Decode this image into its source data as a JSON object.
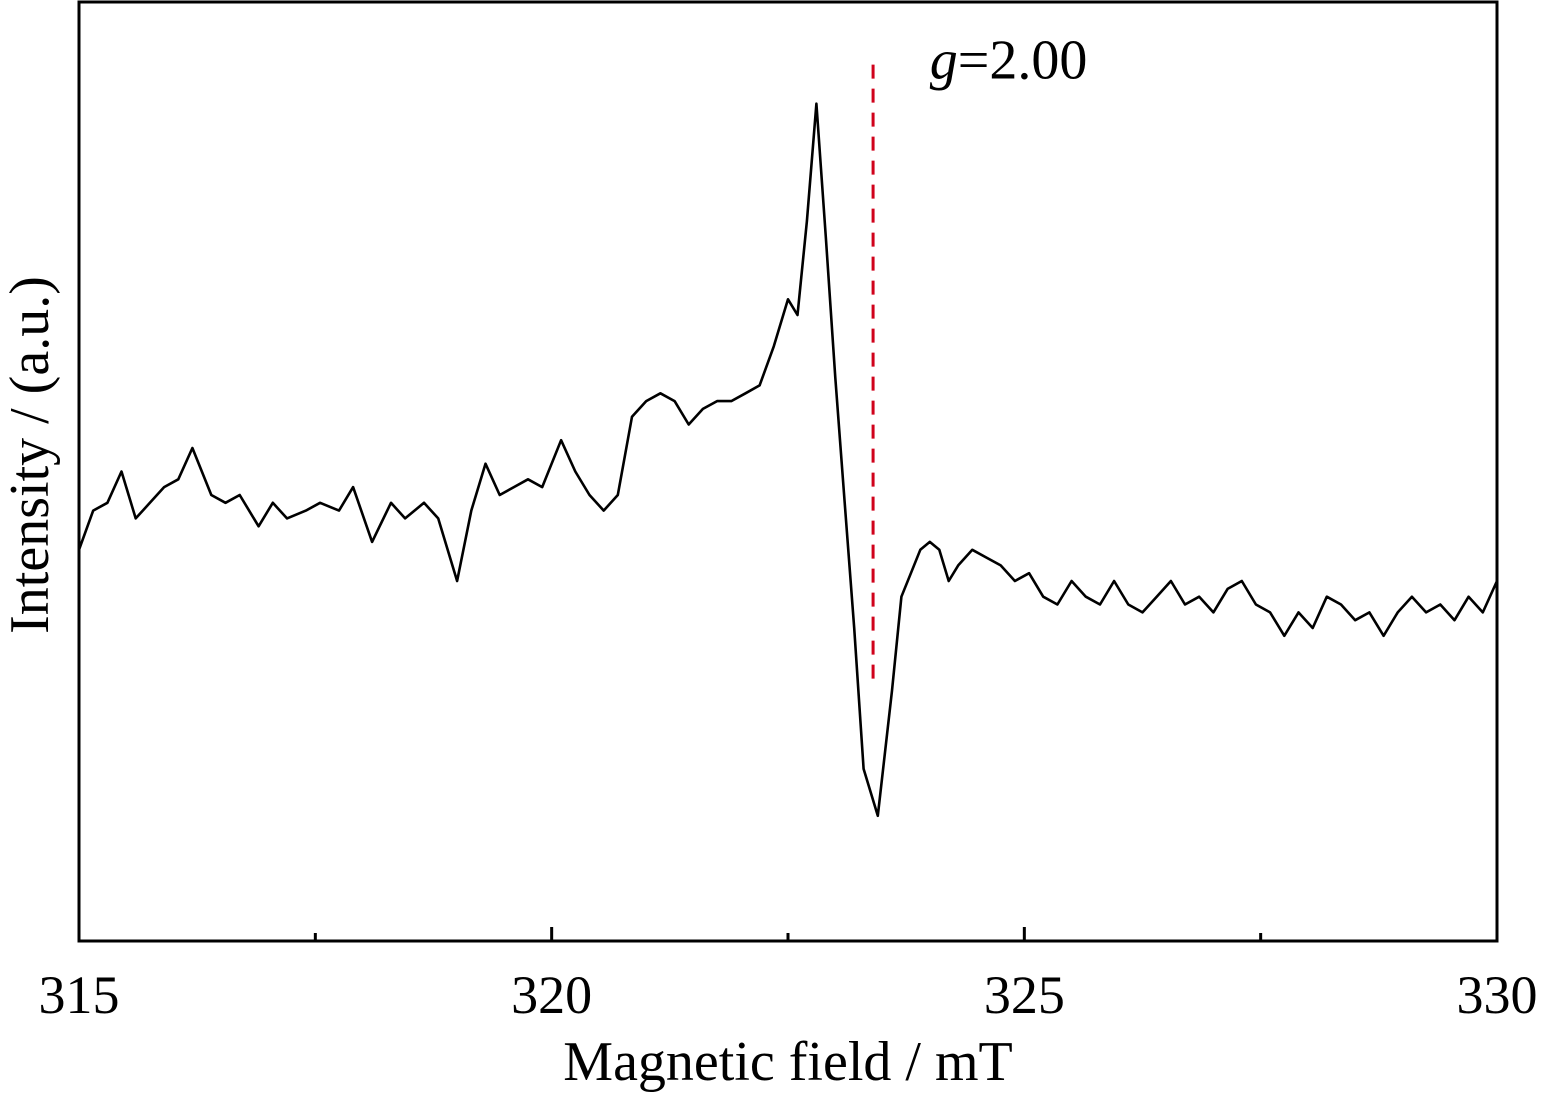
{
  "chart_data": {
    "type": "line",
    "xlabel": "Magnetic field / mT",
    "ylabel": "Intensity / (a.u.)",
    "xlim": [
      315,
      330
    ],
    "ylim": [
      -0.62,
      0.58
    ],
    "x_ticks": [
      315,
      320,
      325,
      330
    ],
    "x_tick_labels": [
      "315",
      "320",
      "325",
      "330"
    ],
    "x_minor_ticks": [
      317.5,
      322.5,
      327.5
    ],
    "y_ticks": [],
    "grid": false,
    "legend": "none",
    "line_color": "#000000",
    "reference_line": {
      "x": 323.4,
      "y_from": -0.29,
      "y_to": 0.5,
      "style": "dashed",
      "color": "#d0021b"
    },
    "annotation": {
      "italic_part": "g",
      "rest": "=2.00",
      "x": 324.0,
      "y": 0.5
    },
    "series": [
      {
        "x": [
          315.0,
          315.15,
          315.3,
          315.45,
          315.6,
          315.75,
          315.9,
          316.05,
          316.2,
          316.4,
          316.55,
          316.7,
          316.9,
          317.05,
          317.2,
          317.4,
          317.55,
          317.75,
          317.9,
          318.1,
          318.3,
          318.45,
          318.65,
          318.8,
          319.0,
          319.15,
          319.3,
          319.45,
          319.6,
          319.75,
          319.9,
          320.1,
          320.25,
          320.4,
          320.55,
          320.7,
          320.85,
          321.0,
          321.15,
          321.3,
          321.45,
          321.6,
          321.75,
          321.9,
          322.05,
          322.2,
          322.35,
          322.5,
          322.6,
          322.7,
          322.8,
          322.9,
          323.0,
          323.1,
          323.2,
          323.3,
          323.45,
          323.6,
          323.7,
          323.8,
          323.9,
          324.0,
          324.1,
          324.2,
          324.3,
          324.45,
          324.6,
          324.75,
          324.9,
          325.05,
          325.2,
          325.35,
          325.5,
          325.65,
          325.8,
          325.95,
          326.1,
          326.25,
          326.4,
          326.55,
          326.7,
          326.85,
          327.0,
          327.15,
          327.3,
          327.45,
          327.6,
          327.75,
          327.9,
          328.05,
          328.2,
          328.35,
          328.5,
          328.65,
          328.8,
          328.95,
          329.1,
          329.25,
          329.4,
          329.55,
          329.7,
          329.85,
          330.0
        ],
        "y": [
          -0.12,
          -0.07,
          -0.06,
          -0.02,
          -0.08,
          -0.06,
          -0.04,
          -0.03,
          0.01,
          -0.05,
          -0.06,
          -0.05,
          -0.09,
          -0.06,
          -0.08,
          -0.07,
          -0.06,
          -0.07,
          -0.04,
          -0.11,
          -0.06,
          -0.08,
          -0.06,
          -0.08,
          -0.16,
          -0.07,
          -0.01,
          -0.05,
          -0.04,
          -0.03,
          -0.04,
          0.02,
          -0.02,
          -0.05,
          -0.07,
          -0.05,
          0.05,
          0.07,
          0.08,
          0.07,
          0.04,
          0.06,
          0.07,
          0.07,
          0.08,
          0.09,
          0.14,
          0.2,
          0.18,
          0.3,
          0.45,
          0.28,
          0.1,
          -0.06,
          -0.22,
          -0.4,
          -0.46,
          -0.3,
          -0.18,
          -0.15,
          -0.12,
          -0.11,
          -0.12,
          -0.16,
          -0.14,
          -0.12,
          -0.13,
          -0.14,
          -0.16,
          -0.15,
          -0.18,
          -0.19,
          -0.16,
          -0.18,
          -0.19,
          -0.16,
          -0.19,
          -0.2,
          -0.18,
          -0.16,
          -0.19,
          -0.18,
          -0.2,
          -0.17,
          -0.16,
          -0.19,
          -0.2,
          -0.23,
          -0.2,
          -0.22,
          -0.18,
          -0.19,
          -0.21,
          -0.2,
          -0.23,
          -0.2,
          -0.18,
          -0.2,
          -0.19,
          -0.21,
          -0.18,
          -0.2,
          -0.16
        ]
      }
    ]
  }
}
